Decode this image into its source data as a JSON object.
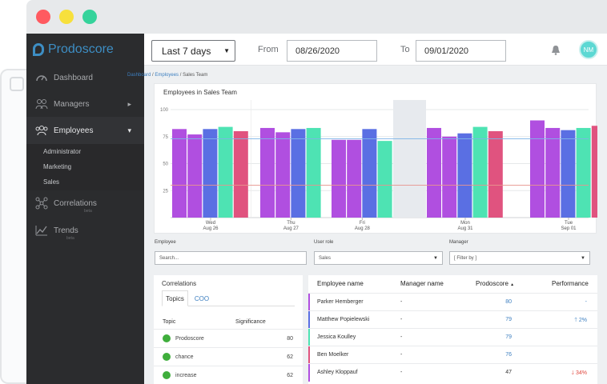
{
  "app": {
    "brand": "Prodoscore"
  },
  "window_controls": [
    {
      "name": "close",
      "color": "#ff5a60"
    },
    {
      "name": "minimize",
      "color": "#f7e03c"
    },
    {
      "name": "zoom",
      "color": "#35d39b"
    }
  ],
  "sidebar": {
    "items": [
      {
        "label": "Dashboard",
        "icon": "gauge-icon"
      },
      {
        "label": "Managers",
        "icon": "managers-icon",
        "chevron": "▸"
      },
      {
        "label": "Employees",
        "icon": "employees-icon",
        "chevron": "▾"
      },
      {
        "label": "Correlations",
        "icon": "correlations-icon",
        "beta": "beta"
      },
      {
        "label": "Trends",
        "icon": "trends-icon",
        "beta": "beta"
      }
    ],
    "sub_items": [
      "Administrator",
      "Marketing",
      "Sales"
    ]
  },
  "topbar": {
    "range": "Last 7 days",
    "from_label": "From",
    "from_date": "08/26/2020",
    "to_label": "To",
    "to_date": "09/01/2020",
    "avatar": "NM"
  },
  "breadcrumb": {
    "dashboard": "Dashboard",
    "employees": "Employees",
    "current": "Sales Team",
    "sep": "/"
  },
  "chart_data": {
    "type": "bar",
    "title": "Employees in Sales Team",
    "ylim": [
      0,
      100
    ],
    "yticks": [
      100,
      75,
      50,
      25
    ],
    "grid": true,
    "day_labels": [
      {
        "day": "Wed",
        "date": "Aug 26"
      },
      {
        "day": "Thu",
        "date": "Aug 27"
      },
      {
        "day": "Fri",
        "date": "Aug 28"
      },
      {
        "day": "Mon",
        "date": "Aug 31"
      },
      {
        "day": "Tue",
        "date": "Sep 01"
      }
    ],
    "series_colors": [
      "#b04fe0",
      "#b04fe0",
      "#5a6fe3",
      "#4ee3b3",
      "#e0537f"
    ],
    "groups": [
      {
        "values": [
          82,
          77,
          82,
          84,
          80
        ]
      },
      {
        "values": [
          83,
          79,
          82,
          83
        ]
      },
      {
        "values": [
          72,
          72,
          82,
          71
        ]
      },
      {
        "values": [
          83,
          75,
          78,
          84,
          80
        ]
      },
      {
        "values": [
          90,
          83,
          81,
          83,
          85
        ]
      }
    ],
    "reference_lines": [
      {
        "value": 73,
        "color": "#7fb5e8"
      },
      {
        "value": 30,
        "color": "#e8958f"
      }
    ]
  },
  "filters": {
    "employee_label": "Employee",
    "employee_placeholder": "Search...",
    "role_label": "User role",
    "role_value": "Sales",
    "manager_label": "Manager",
    "manager_value": "[ Filter by ]"
  },
  "correlations": {
    "title": "Correlations",
    "tabs": [
      "Topics",
      "COO"
    ],
    "col_topic": "Topic",
    "col_significance": "Significance",
    "rows": [
      {
        "topic": "Prodoscore",
        "value": "80"
      },
      {
        "topic": "chance",
        "value": "62"
      },
      {
        "topic": "increase",
        "value": "62"
      }
    ]
  },
  "employees_table": {
    "headers": {
      "name": "Employee name",
      "manager": "Manager name",
      "score": "Prodoscore",
      "sort": "▲",
      "performance": "Performance"
    },
    "rows": [
      {
        "name": "Parker Hemberger",
        "manager": "-",
        "score": "80",
        "performance": "-",
        "color": "#b04fe0",
        "score_color": "#3d7fc0",
        "perf_color": "#3d7fc0"
      },
      {
        "name": "Matthew Popielewski",
        "manager": "-",
        "score": "79",
        "performance": "🡑 2%",
        "color": "#5a6fe3",
        "score_color": "#3d7fc0",
        "perf_color": "#3d7fc0"
      },
      {
        "name": "Jessica Koulley",
        "manager": "-",
        "score": "79",
        "performance": "",
        "color": "#4ee3b3",
        "score_color": "#3d7fc0",
        "perf_color": "#3d7fc0"
      },
      {
        "name": "Ben Moelker",
        "manager": "-",
        "score": "76",
        "performance": "",
        "color": "#e0537f",
        "score_color": "#3d7fc0",
        "perf_color": "#3d7fc0"
      },
      {
        "name": "Ashley Kloppauf",
        "manager": "-",
        "score": "47",
        "performance": "🡓 34%",
        "color": "#b04fe0",
        "score_color": "#333333",
        "perf_color": "#e0483f"
      }
    ]
  }
}
